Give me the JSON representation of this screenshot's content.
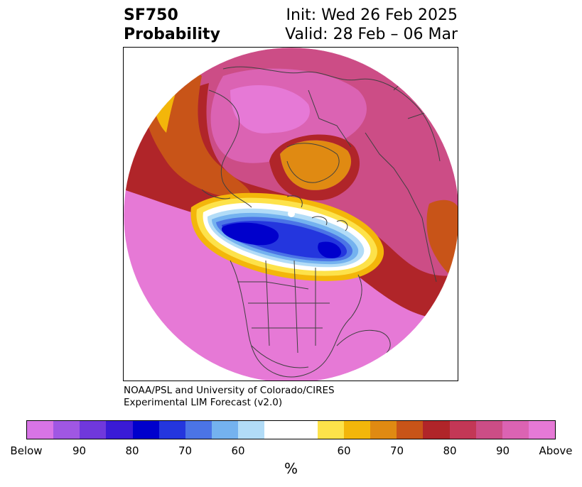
{
  "header": {
    "variable": "SF750",
    "product": "Probability",
    "init": "Init: Wed 26 Feb 2025",
    "valid": "Valid: 28 Feb – 06 Mar"
  },
  "credit": {
    "line1": "NOAA/PSL and University of Colorado/CIRES",
    "line2": "Experimental LIM Forecast (v2.0)"
  },
  "colorbar": {
    "unit": "%",
    "segments": [
      "#d874e6",
      "#a057e3",
      "#7038dc",
      "#3a1bd6",
      "#0000cc",
      "#2436de",
      "#4b74e6",
      "#74b2ef",
      "#b2dcf7",
      "#ffffff",
      "#ffffff",
      "#fde24a",
      "#f3b60a",
      "#e08a12",
      "#c85418",
      "#b02529",
      "#c33756",
      "#cc4d86",
      "#db63b3",
      "#e679d6"
    ],
    "tick_labels": [
      "Below",
      "90",
      "80",
      "70",
      "60",
      "60",
      "70",
      "80",
      "90",
      "Above"
    ]
  },
  "map": {
    "colors": {
      "above_max": "#e679d6",
      "above_90": "#db63b3",
      "above_85": "#cc4d86",
      "above_80": "#c33756",
      "above_75": "#b02529",
      "above_70": "#c85418",
      "above_65": "#e08a12",
      "above_60": "#f3b60a",
      "above_55": "#fde24a",
      "neutral": "#ffffff",
      "below_55": "#b2dcf7",
      "below_60": "#74b2ef",
      "below_65": "#4b74e6",
      "below_70": "#2436de",
      "below_75": "#0000cc",
      "below_80": "#3a1bd6"
    },
    "coastline_color": "#404040"
  }
}
